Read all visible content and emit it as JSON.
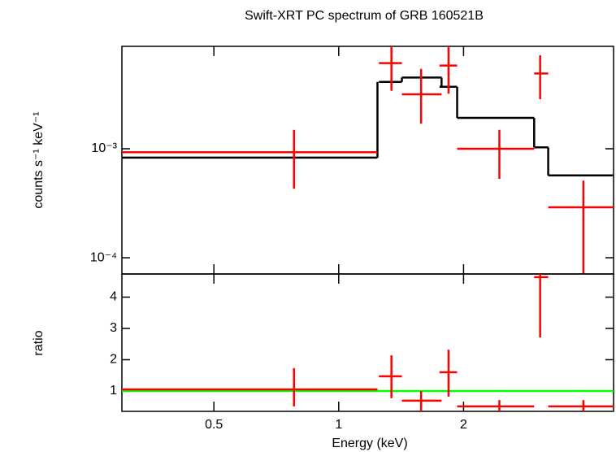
{
  "chart_data": [
    {
      "type": "spectrum",
      "title": "Swift-XRT PC spectrum of GRB 160521B",
      "ylabel": "counts s⁻¹ keV⁻¹",
      "xscale": "log",
      "yscale": "log",
      "xlim": [
        0.3,
        4.6
      ],
      "ylim": [
        7.1e-05,
        0.0087
      ],
      "yticks": [
        {
          "value": 0.001,
          "label": "10⁻³"
        },
        {
          "value": 0.0001,
          "label": "10⁻⁴"
        }
      ],
      "data": {
        "color": "#ff0000",
        "x": [
          0.78,
          1.34,
          1.58,
          1.84,
          2.44,
          3.06,
          3.89
        ],
        "x_low": [
          0.3,
          1.25,
          1.42,
          1.75,
          1.93,
          2.96,
          3.2
        ],
        "x_high": [
          1.24,
          1.42,
          1.77,
          1.93,
          2.96,
          3.2,
          4.6
        ],
        "y": [
          0.00093,
          0.0061,
          0.00316,
          0.0058,
          0.001,
          0.0049,
          0.00029
        ],
        "y_low": [
          0.00043,
          0.0034,
          0.0017,
          0.0032,
          0.00053,
          0.00285,
          7.1e-05
        ],
        "y_high": [
          0.00149,
          0.0093,
          0.0054,
          0.0087,
          0.00149,
          0.0072,
          0.00051
        ]
      },
      "model": {
        "color": "#000000",
        "values": [
          0.00083,
          0.0041,
          0.0045,
          0.0037,
          0.00192,
          0.00103,
          0.00057
        ]
      }
    },
    {
      "type": "ratio",
      "ylabel": "ratio",
      "xlabel": "Energy (keV)",
      "xscale": "log",
      "xlim": [
        0.3,
        4.6
      ],
      "ylim": [
        0.35,
        4.74
      ],
      "xticks": [
        0.5,
        1,
        2
      ],
      "yticks": [
        1,
        2,
        3,
        4
      ],
      "data": {
        "color": "#ff0000",
        "x": [
          0.78,
          1.34,
          1.58,
          1.84,
          2.44,
          3.06,
          3.89
        ],
        "x_low": [
          0.3,
          1.25,
          1.42,
          1.75,
          1.93,
          2.96,
          3.2
        ],
        "x_high": [
          1.24,
          1.42,
          1.77,
          1.93,
          2.96,
          3.2,
          4.6
        ],
        "y": [
          1.05,
          1.47,
          0.69,
          1.6,
          0.51,
          4.64,
          0.51
        ],
        "y_low": [
          0.51,
          0.77,
          0.35,
          0.82,
          0.35,
          2.71,
          0.35
        ],
        "y_high": [
          1.73,
          2.14,
          1.0,
          2.32,
          0.71,
          4.74,
          0.71
        ]
      },
      "reference_line": {
        "value": 1,
        "color": "#00ff00"
      }
    }
  ]
}
